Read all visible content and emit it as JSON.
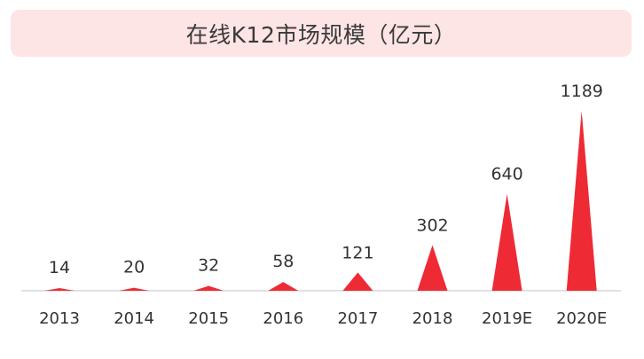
{
  "title": "在线K12市场规模（亿元）",
  "colors": {
    "banner_bg": "#fde4e5",
    "spike": "#ee2b35",
    "baseline": "#d9d9d9",
    "text": "#333333"
  },
  "chart_data": {
    "type": "bar",
    "mark_shape": "triangle",
    "title": "在线K12市场规模（亿元）",
    "xlabel": "",
    "ylabel": "",
    "categories": [
      "2013",
      "2014",
      "2015",
      "2016",
      "2017",
      "2018",
      "2019E",
      "2020E"
    ],
    "values": [
      14,
      20,
      32,
      58,
      121,
      302,
      640,
      1189
    ],
    "data_labels": [
      "14",
      "20",
      "32",
      "58",
      "121",
      "302",
      "640",
      "1189"
    ],
    "grid": false,
    "legend": "none"
  }
}
